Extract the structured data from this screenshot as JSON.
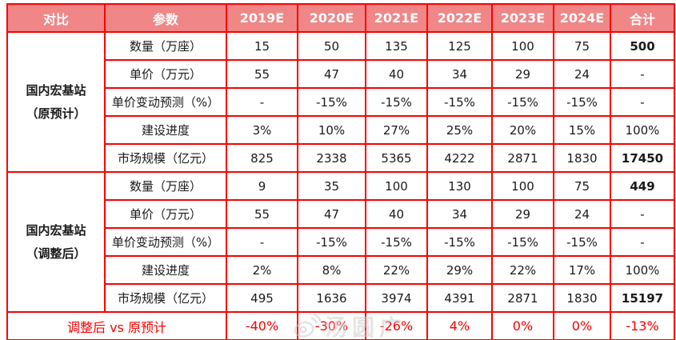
{
  "table": {
    "colors": {
      "border": "#fd0000",
      "header_bg": "#f18687",
      "header_text": "#ffffff",
      "footer_text": "#fb0000",
      "body_text": "#1a1a1a"
    },
    "header": [
      "对比",
      "参数",
      "2019E",
      "2020E",
      "2021E",
      "2022E",
      "2023E",
      "2024E",
      "合计"
    ],
    "groups": [
      {
        "label_lines": [
          "国内宏基站",
          "（原预计）"
        ],
        "rows": [
          {
            "param": "数量（万座）",
            "values": [
              "15",
              "50",
              "135",
              "125",
              "100",
              "75"
            ],
            "total": "500",
            "total_bold": true
          },
          {
            "param": "单价（万元）",
            "values": [
              "55",
              "47",
              "40",
              "34",
              "29",
              "24"
            ],
            "total": "-",
            "total_bold": false
          },
          {
            "param": "单价变动预测（%）",
            "values": [
              "-",
              "-15%",
              "-15%",
              "-15%",
              "-15%",
              "-15%"
            ],
            "total": "-",
            "total_bold": false
          },
          {
            "param": "建设进度",
            "values": [
              "3%",
              "10%",
              "27%",
              "25%",
              "20%",
              "15%"
            ],
            "total": "100%",
            "total_bold": false
          },
          {
            "param": "市场规模（亿元）",
            "values": [
              "825",
              "2338",
              "5365",
              "4222",
              "2871",
              "1830"
            ],
            "total": "17450",
            "total_bold": true
          }
        ]
      },
      {
        "label_lines": [
          "国内宏基站",
          "（调整后）"
        ],
        "rows": [
          {
            "param": "数量（万座）",
            "values": [
              "9",
              "35",
              "100",
              "130",
              "100",
              "75"
            ],
            "total": "449",
            "total_bold": true
          },
          {
            "param": "单价（万元）",
            "values": [
              "55",
              "47",
              "40",
              "34",
              "29",
              "24"
            ],
            "total": "-",
            "total_bold": false
          },
          {
            "param": "单价变动预测（%）",
            "values": [
              "-",
              "-15%",
              "-15%",
              "-15%",
              "-15%",
              "-15%"
            ],
            "total": "-",
            "total_bold": false
          },
          {
            "param": "建设进度",
            "values": [
              "2%",
              "8%",
              "22%",
              "29%",
              "22%",
              "17%"
            ],
            "total": "100%",
            "total_bold": false
          },
          {
            "param": "市场规模（亿元）",
            "values": [
              "495",
              "1636",
              "3974",
              "4391",
              "2871",
              "1830"
            ],
            "total": "15197",
            "total_bold": true
          }
        ]
      }
    ],
    "footer": {
      "label": "调整后 vs 原预计",
      "values": [
        "-40%",
        "-30%",
        "-26%",
        "4%",
        "0%",
        "0%",
        "-13%"
      ]
    }
  },
  "watermark": {
    "text": "汤圆广"
  },
  "chart_data": {
    "type": "table",
    "title": "国内宏基站建设预测对比（原预计 vs 调整后）",
    "columns": [
      "对比",
      "参数",
      "2019E",
      "2020E",
      "2021E",
      "2022E",
      "2023E",
      "2024E",
      "合计"
    ],
    "rows": [
      [
        "国内宏基站（原预计）",
        "数量（万座）",
        15,
        50,
        135,
        125,
        100,
        75,
        500
      ],
      [
        "国内宏基站（原预计）",
        "单价（万元）",
        55,
        47,
        40,
        34,
        29,
        24,
        null
      ],
      [
        "国内宏基站（原预计）",
        "单价变动预测（%）",
        null,
        -0.15,
        -0.15,
        -0.15,
        -0.15,
        -0.15,
        null
      ],
      [
        "国内宏基站（原预计）",
        "建设进度",
        0.03,
        0.1,
        0.27,
        0.25,
        0.2,
        0.15,
        1.0
      ],
      [
        "国内宏基站（原预计）",
        "市场规模（亿元）",
        825,
        2338,
        5365,
        4222,
        2871,
        1830,
        17450
      ],
      [
        "国内宏基站（调整后）",
        "数量（万座）",
        9,
        35,
        100,
        130,
        100,
        75,
        449
      ],
      [
        "国内宏基站（调整后）",
        "单价（万元）",
        55,
        47,
        40,
        34,
        29,
        24,
        null
      ],
      [
        "国内宏基站（调整后）",
        "单价变动预测（%）",
        null,
        -0.15,
        -0.15,
        -0.15,
        -0.15,
        -0.15,
        null
      ],
      [
        "国内宏基站（调整后）",
        "建设进度",
        0.02,
        0.08,
        0.22,
        0.29,
        0.22,
        0.17,
        1.0
      ],
      [
        "国内宏基站（调整后）",
        "市场规模（亿元）",
        495,
        1636,
        3974,
        4391,
        2871,
        1830,
        15197
      ],
      [
        "调整后 vs 原预计",
        "",
        -0.4,
        -0.3,
        -0.26,
        0.04,
        0.0,
        0.0,
        -0.13
      ]
    ]
  }
}
